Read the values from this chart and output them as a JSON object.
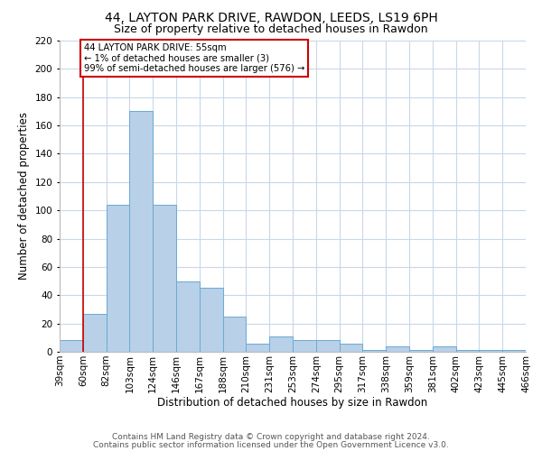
{
  "title": "44, LAYTON PARK DRIVE, RAWDON, LEEDS, LS19 6PH",
  "subtitle": "Size of property relative to detached houses in Rawdon",
  "xlabel": "Distribution of detached houses by size in Rawdon",
  "ylabel": "Number of detached properties",
  "bar_heights": [
    8,
    27,
    104,
    170,
    104,
    50,
    45,
    25,
    6,
    11,
    8,
    8,
    6,
    1,
    4,
    1,
    4,
    1,
    1,
    1
  ],
  "bar_labels": [
    "39sqm",
    "60sqm",
    "82sqm",
    "103sqm",
    "124sqm",
    "146sqm",
    "167sqm",
    "188sqm",
    "210sqm",
    "231sqm",
    "253sqm",
    "274sqm",
    "295sqm",
    "317sqm",
    "338sqm",
    "359sqm",
    "381sqm",
    "402sqm",
    "423sqm",
    "445sqm",
    "466sqm"
  ],
  "bar_color": "#b8d0e8",
  "bar_edge_color": "#6aaad4",
  "annotation_box_text": "44 LAYTON PARK DRIVE: 55sqm\n← 1% of detached houses are smaller (3)\n99% of semi-detached houses are larger (576) →",
  "annotation_box_color": "#ffffff",
  "annotation_box_edge_color": "#cc0000",
  "vline_color": "#cc0000",
  "ylim": [
    0,
    220
  ],
  "yticks": [
    0,
    20,
    40,
    60,
    80,
    100,
    120,
    140,
    160,
    180,
    200,
    220
  ],
  "footer_line1": "Contains HM Land Registry data © Crown copyright and database right 2024.",
  "footer_line2": "Contains public sector information licensed under the Open Government Licence v3.0.",
  "bg_color": "#ffffff",
  "grid_color": "#c8d8e8",
  "title_fontsize": 10,
  "subtitle_fontsize": 9,
  "axis_label_fontsize": 8.5,
  "tick_fontsize": 7.5,
  "footer_fontsize": 6.5
}
